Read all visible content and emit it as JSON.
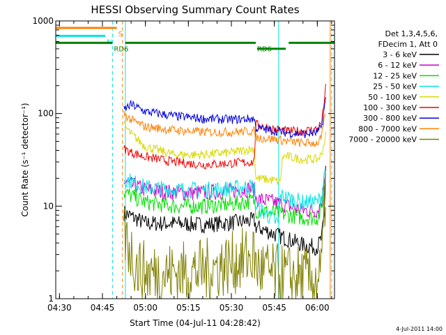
{
  "chart_data": {
    "type": "line",
    "title": "HESSI Observing Summary Count Rates",
    "xlabel": "Start Time (04-Jul-11 04:28:42)",
    "ylabel": "Count Rate (s⁻¹ detector⁻¹)",
    "yscale": "log",
    "ylim": [
      1,
      1000
    ],
    "xlim": [
      "04:28:42",
      "06:06:00"
    ],
    "x_ticks": [
      "04:30",
      "04:45",
      "05:00",
      "05:15",
      "05:30",
      "05:45",
      "06:00"
    ],
    "y_ticks": [
      "1",
      "10",
      "100",
      "1000"
    ],
    "grid": false,
    "legend_header": [
      "Det 1,3,4,5,6,",
      "FDecim 1, Att 0"
    ],
    "legend_position": "right",
    "series": [
      {
        "name": "3 - 6 keV",
        "color": "#000000",
        "points": [
          [
            "04:52:30",
            8.5
          ],
          [
            "05:00",
            6.5
          ],
          [
            "05:10",
            6.5
          ],
          [
            "05:20",
            6.3
          ],
          [
            "05:30",
            6.6
          ],
          [
            "05:38",
            7.0
          ],
          [
            "05:38:30",
            6.0
          ],
          [
            "05:45",
            5.0
          ],
          [
            "05:55",
            3.8
          ],
          [
            "06:00",
            3.6
          ],
          [
            "06:01:30",
            4.5
          ],
          [
            "06:02:30",
            8.0
          ],
          [
            "06:03",
            40
          ]
        ]
      },
      {
        "name": "6 - 12 keV",
        "color": "#cc00cc",
        "points": [
          [
            "04:52:30",
            18
          ],
          [
            "05:00",
            15
          ],
          [
            "05:10",
            14
          ],
          [
            "05:20",
            14
          ],
          [
            "05:30",
            14.5
          ],
          [
            "05:38",
            15.5
          ],
          [
            "05:38:30",
            12
          ],
          [
            "05:45",
            11
          ],
          [
            "05:55",
            9
          ],
          [
            "06:00",
            9
          ],
          [
            "06:01:30",
            11
          ],
          [
            "06:03",
            30
          ]
        ]
      },
      {
        "name": "12 - 25 keV",
        "color": "#00e000",
        "points": [
          [
            "04:52:30",
            14
          ],
          [
            "05:00",
            11
          ],
          [
            "05:10",
            10
          ],
          [
            "05:20",
            10
          ],
          [
            "05:30",
            10.5
          ],
          [
            "05:38",
            11.5
          ],
          [
            "05:38:30",
            9
          ],
          [
            "05:45",
            8.5
          ],
          [
            "05:55",
            7.5
          ],
          [
            "06:00",
            7.5
          ],
          [
            "06:01:30",
            9
          ],
          [
            "06:03",
            25
          ]
        ]
      },
      {
        "name": "25 - 50 keV",
        "color": "#00e5e5",
        "points": [
          [
            "04:52:30",
            20
          ],
          [
            "05:00",
            16
          ],
          [
            "05:10",
            15
          ],
          [
            "05:20",
            15
          ],
          [
            "05:30",
            15.5
          ],
          [
            "05:38",
            16.5
          ],
          [
            "05:38:30",
            10
          ],
          [
            "05:45",
            7
          ],
          [
            "05:46:30",
            6.5
          ],
          [
            "05:47",
            13
          ],
          [
            "05:55",
            11
          ],
          [
            "06:00",
            11
          ],
          [
            "06:01:30",
            13
          ],
          [
            "06:03",
            30
          ]
        ]
      },
      {
        "name": "50 - 100 keV",
        "color": "#d8d800",
        "points": [
          [
            "04:52:30",
            75
          ],
          [
            "04:55",
            60
          ],
          [
            "05:00",
            44
          ],
          [
            "05:10",
            36
          ],
          [
            "05:20",
            36
          ],
          [
            "05:30",
            38
          ],
          [
            "05:38",
            42
          ],
          [
            "05:38:30",
            20
          ],
          [
            "05:45",
            19
          ],
          [
            "05:47",
            18
          ],
          [
            "05:48",
            35
          ],
          [
            "05:55",
            32
          ],
          [
            "06:00",
            32
          ],
          [
            "06:01:30",
            36
          ],
          [
            "06:03",
            60
          ]
        ]
      },
      {
        "name": "100 - 300 keV",
        "color": "#ee0000",
        "points": [
          [
            "04:52:30",
            42
          ],
          [
            "04:55",
            38
          ],
          [
            "05:00",
            34
          ],
          [
            "05:10",
            30
          ],
          [
            "05:20",
            28
          ],
          [
            "05:30",
            29
          ],
          [
            "05:38",
            30
          ],
          [
            "05:38:30",
            76
          ],
          [
            "05:45",
            68
          ],
          [
            "05:50",
            64
          ],
          [
            "05:55",
            65
          ],
          [
            "06:00",
            68
          ],
          [
            "06:01:30",
            80
          ],
          [
            "06:03",
            200
          ]
        ]
      },
      {
        "name": "300 - 800 keV",
        "color": "#0000dd",
        "points": [
          [
            "04:52:30",
            110
          ],
          [
            "04:55",
            125
          ],
          [
            "05:00",
            105
          ],
          [
            "05:10",
            94
          ],
          [
            "05:20",
            88
          ],
          [
            "05:30",
            86
          ],
          [
            "05:38",
            88
          ],
          [
            "05:38:30",
            70
          ],
          [
            "05:45",
            65
          ],
          [
            "05:50",
            62
          ],
          [
            "05:55",
            60
          ],
          [
            "06:00",
            62
          ],
          [
            "06:01:30",
            72
          ],
          [
            "06:03",
            150
          ]
        ]
      },
      {
        "name": "800 - 7000 keV",
        "color": "#ff8000",
        "points": [
          [
            "04:52:30",
            100
          ],
          [
            "04:55",
            85
          ],
          [
            "05:00",
            72
          ],
          [
            "05:10",
            66
          ],
          [
            "05:20",
            63
          ],
          [
            "05:30",
            63
          ],
          [
            "05:38",
            65
          ],
          [
            "05:38:30",
            55
          ],
          [
            "05:45",
            53
          ],
          [
            "05:50",
            50
          ],
          [
            "05:55",
            48
          ],
          [
            "06:00",
            48
          ],
          [
            "06:01:30",
            55
          ],
          [
            "06:03",
            110
          ]
        ]
      },
      {
        "name": "7000 - 20000 keV",
        "color": "#808000",
        "points": [
          [
            "04:52:30",
            5
          ],
          [
            "04:55",
            3.2
          ],
          [
            "04:57",
            2.2
          ],
          [
            "05:00",
            1.9
          ],
          [
            "05:10",
            1.9
          ],
          [
            "05:20",
            2.0
          ],
          [
            "05:30",
            2.4
          ],
          [
            "05:38",
            2.9
          ],
          [
            "05:38:30",
            2.2
          ],
          [
            "05:45",
            1.8
          ],
          [
            "05:55",
            1.7
          ],
          [
            "06:00",
            1.6
          ],
          [
            "06:01:30",
            2.0
          ],
          [
            "06:03",
            20
          ]
        ]
      }
    ],
    "annotations": [
      {
        "label": "S",
        "color": "#ff8000",
        "bar": [
          "04:28:42",
          "04:50:00"
        ],
        "level": 840
      },
      {
        "label": "N",
        "color": "#00e5e5",
        "bar": [
          "04:28:42",
          "04:46:00"
        ],
        "level": 690
      },
      {
        "label": "RD6",
        "color": "#008000",
        "bar": [
          "04:28:42",
          "04:48:30"
        ],
        "level": 580
      },
      {
        "label": "RD6",
        "color": "#008000",
        "bar": [
          "04:53:00",
          "05:38:30"
        ],
        "level": 580
      },
      {
        "label": "",
        "color": "#008000",
        "bar": [
          "05:39:00",
          "05:49:00"
        ],
        "level": 500
      },
      {
        "label": "",
        "color": "#008000",
        "bar": [
          "05:50:00",
          "06:06:00"
        ],
        "level": 580
      }
    ],
    "vertical_markers": [
      {
        "time": "04:48:30",
        "color": "#00e5e5",
        "style": "dashed"
      },
      {
        "time": "04:52:00",
        "color": "#ff8000",
        "style": "dashed"
      },
      {
        "time": "04:53:00",
        "color": "#00e5e5",
        "style": "solid"
      },
      {
        "time": "05:46:30",
        "color": "#00e5e5",
        "style": "solid"
      },
      {
        "time": "06:04:30",
        "color": "#ff8000",
        "style": "solid"
      },
      {
        "time": "06:05:00",
        "color": "#00e5e5",
        "style": "dashed"
      }
    ]
  },
  "footer_text": "4-Jul-2011 14:00"
}
